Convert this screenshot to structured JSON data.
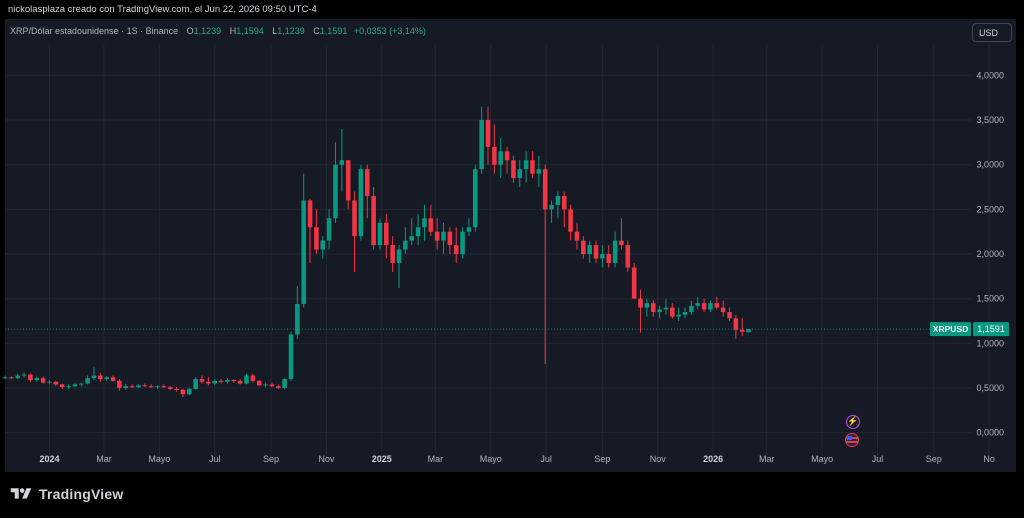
{
  "caption": "nickolasplaza creado con TradingView.com, el Jun 22, 2026 09:50 UTC-4",
  "symbol_line": {
    "title": "XRP/Dólar estadounidense · 1S · Binance",
    "o_label": "O",
    "o_value": "1,1239",
    "h_label": "H",
    "h_value": "1,1594",
    "l_label": "L",
    "l_value": "1,1239",
    "c_label": "C",
    "c_value": "1,1591",
    "change": "+0,0353 (+3,14%)"
  },
  "currency_button": "USD",
  "brand": "TradingView",
  "events": [
    {
      "name": "lightning-event-icon",
      "glyph": "⚡"
    },
    {
      "name": "us-flag-event-icon",
      "glyph": ""
    }
  ],
  "colors": {
    "up": "#089981",
    "down": "#f23645",
    "background": "#161a25",
    "grid": "#232632",
    "axis_text": "#b2b5be",
    "price_label": "#089981"
  },
  "chart_data": {
    "type": "candlestick",
    "timeframe": "weekly",
    "ylim": [
      -0.25,
      4.15
    ],
    "yticks": [
      0,
      0.5,
      1,
      1.5,
      2,
      2.5,
      3,
      3.5,
      4
    ],
    "ytick_labels": [
      "0,0000",
      "0,5000",
      "1,0000",
      "1,5000",
      "2,0000",
      "2,5000",
      "3,0000",
      "3,5000",
      "4,0000"
    ],
    "x_start": "2023-11-13",
    "x_end": "2026-10-12",
    "xticks": [
      {
        "date": "2024-01-01",
        "label": "2024",
        "bold": true
      },
      {
        "date": "2024-03-01",
        "label": "Mar"
      },
      {
        "date": "2024-05-01",
        "label": "Mayo"
      },
      {
        "date": "2024-07-01",
        "label": "Jul"
      },
      {
        "date": "2024-09-01",
        "label": "Sep"
      },
      {
        "date": "2024-11-01",
        "label": "Nov"
      },
      {
        "date": "2025-01-01",
        "label": "2025",
        "bold": true
      },
      {
        "date": "2025-03-01",
        "label": "Mar"
      },
      {
        "date": "2025-05-01",
        "label": "Mayo"
      },
      {
        "date": "2025-07-01",
        "label": "Jul"
      },
      {
        "date": "2025-09-01",
        "label": "Sep"
      },
      {
        "date": "2025-11-01",
        "label": "Nov"
      },
      {
        "date": "2026-01-01",
        "label": "2026",
        "bold": true
      },
      {
        "date": "2026-03-01",
        "label": "Mar"
      },
      {
        "date": "2026-05-01",
        "label": "Mayo"
      },
      {
        "date": "2026-07-01",
        "label": "Jul"
      },
      {
        "date": "2026-09-01",
        "label": "Sep"
      },
      {
        "date": "2026-11-01",
        "label": "No"
      }
    ],
    "last_price_label": {
      "symbol": "XRPUSD",
      "value": "1,1591",
      "price": 1.1591
    },
    "ohlc_weekly_from_2023-11-13": [
      [
        0.62,
        0.64,
        0.6,
        0.62
      ],
      [
        0.62,
        0.63,
        0.6,
        0.61
      ],
      [
        0.61,
        0.66,
        0.6,
        0.64
      ],
      [
        0.64,
        0.67,
        0.62,
        0.65
      ],
      [
        0.65,
        0.66,
        0.57,
        0.59
      ],
      [
        0.59,
        0.63,
        0.57,
        0.61
      ],
      [
        0.61,
        0.63,
        0.55,
        0.56
      ],
      [
        0.56,
        0.59,
        0.54,
        0.57
      ],
      [
        0.57,
        0.58,
        0.52,
        0.54
      ],
      [
        0.54,
        0.55,
        0.49,
        0.51
      ],
      [
        0.51,
        0.54,
        0.49,
        0.52
      ],
      [
        0.52,
        0.56,
        0.51,
        0.54
      ],
      [
        0.54,
        0.56,
        0.52,
        0.55
      ],
      [
        0.55,
        0.64,
        0.54,
        0.61
      ],
      [
        0.61,
        0.74,
        0.59,
        0.64
      ],
      [
        0.64,
        0.67,
        0.57,
        0.6
      ],
      [
        0.6,
        0.63,
        0.58,
        0.62
      ],
      [
        0.62,
        0.64,
        0.57,
        0.58
      ],
      [
        0.58,
        0.6,
        0.47,
        0.5
      ],
      [
        0.5,
        0.55,
        0.48,
        0.52
      ],
      [
        0.52,
        0.54,
        0.5,
        0.51
      ],
      [
        0.51,
        0.54,
        0.5,
        0.53
      ],
      [
        0.53,
        0.55,
        0.51,
        0.52
      ],
      [
        0.52,
        0.54,
        0.5,
        0.51
      ],
      [
        0.51,
        0.53,
        0.49,
        0.52
      ],
      [
        0.52,
        0.54,
        0.5,
        0.51
      ],
      [
        0.51,
        0.52,
        0.48,
        0.49
      ],
      [
        0.49,
        0.51,
        0.46,
        0.48
      ],
      [
        0.48,
        0.49,
        0.4,
        0.43
      ],
      [
        0.43,
        0.5,
        0.42,
        0.49
      ],
      [
        0.49,
        0.62,
        0.48,
        0.6
      ],
      [
        0.6,
        0.64,
        0.55,
        0.57
      ],
      [
        0.57,
        0.62,
        0.53,
        0.55
      ],
      [
        0.55,
        0.6,
        0.53,
        0.58
      ],
      [
        0.58,
        0.6,
        0.55,
        0.57
      ],
      [
        0.57,
        0.61,
        0.55,
        0.59
      ],
      [
        0.59,
        0.6,
        0.56,
        0.58
      ],
      [
        0.58,
        0.6,
        0.54,
        0.55
      ],
      [
        0.55,
        0.66,
        0.54,
        0.64
      ],
      [
        0.64,
        0.66,
        0.56,
        0.58
      ],
      [
        0.58,
        0.59,
        0.52,
        0.53
      ],
      [
        0.53,
        0.56,
        0.51,
        0.54
      ],
      [
        0.54,
        0.56,
        0.51,
        0.52
      ],
      [
        0.52,
        0.54,
        0.49,
        0.5
      ],
      [
        0.5,
        0.61,
        0.49,
        0.6
      ],
      [
        0.6,
        1.13,
        0.58,
        1.1
      ],
      [
        1.1,
        1.64,
        1.05,
        1.44
      ],
      [
        1.44,
        2.9,
        1.4,
        2.6
      ],
      [
        2.6,
        2.62,
        1.9,
        2.3
      ],
      [
        2.3,
        2.5,
        2.0,
        2.05
      ],
      [
        2.05,
        2.2,
        1.95,
        2.15
      ],
      [
        2.15,
        2.5,
        2.05,
        2.4
      ],
      [
        2.4,
        3.25,
        2.35,
        3.0
      ],
      [
        3.0,
        3.4,
        2.7,
        3.05
      ],
      [
        3.05,
        3.05,
        2.5,
        2.6
      ],
      [
        2.6,
        2.7,
        1.8,
        2.2
      ],
      [
        2.2,
        3.0,
        2.15,
        2.95
      ],
      [
        2.95,
        3.0,
        2.4,
        2.65
      ],
      [
        2.65,
        2.75,
        2.05,
        2.1
      ],
      [
        2.1,
        2.4,
        2.05,
        2.35
      ],
      [
        2.35,
        2.45,
        1.95,
        2.1
      ],
      [
        2.1,
        2.2,
        1.8,
        1.9
      ],
      [
        1.9,
        2.1,
        1.62,
        2.05
      ],
      [
        2.05,
        2.3,
        2.0,
        2.15
      ],
      [
        2.15,
        2.4,
        2.1,
        2.2
      ],
      [
        2.2,
        2.45,
        2.1,
        2.3
      ],
      [
        2.3,
        2.55,
        2.15,
        2.4
      ],
      [
        2.4,
        2.55,
        2.2,
        2.25
      ],
      [
        2.25,
        2.4,
        2.05,
        2.15
      ],
      [
        2.15,
        2.35,
        2.0,
        2.25
      ],
      [
        2.25,
        2.3,
        2.0,
        2.1
      ],
      [
        2.1,
        2.3,
        1.9,
        2.0
      ],
      [
        2.0,
        2.3,
        1.95,
        2.25
      ],
      [
        2.25,
        2.4,
        2.2,
        2.3
      ],
      [
        2.3,
        3.0,
        2.25,
        2.95
      ],
      [
        2.95,
        3.65,
        2.9,
        3.5
      ],
      [
        3.5,
        3.65,
        3.0,
        3.2
      ],
      [
        3.2,
        3.45,
        2.9,
        3.0
      ],
      [
        3.0,
        3.3,
        2.85,
        3.15
      ],
      [
        3.15,
        3.2,
        2.9,
        3.05
      ],
      [
        3.05,
        3.1,
        2.8,
        2.85
      ],
      [
        2.85,
        3.05,
        2.75,
        2.95
      ],
      [
        2.95,
        3.15,
        2.8,
        3.05
      ],
      [
        3.05,
        3.15,
        2.85,
        2.9
      ],
      [
        2.9,
        3.1,
        2.75,
        2.95
      ],
      [
        2.95,
        3.0,
        0.77,
        2.5
      ],
      [
        2.5,
        2.6,
        2.35,
        2.55
      ],
      [
        2.55,
        2.7,
        2.4,
        2.65
      ],
      [
        2.65,
        2.7,
        2.3,
        2.5
      ],
      [
        2.5,
        2.55,
        2.15,
        2.25
      ],
      [
        2.25,
        2.35,
        2.05,
        2.15
      ],
      [
        2.15,
        2.2,
        1.95,
        2.0
      ],
      [
        2.0,
        2.15,
        1.9,
        2.1
      ],
      [
        2.1,
        2.15,
        1.9,
        1.95
      ],
      [
        1.95,
        2.1,
        1.85,
        2.0
      ],
      [
        2.0,
        2.1,
        1.85,
        1.9
      ],
      [
        1.9,
        2.25,
        1.85,
        2.15
      ],
      [
        2.15,
        2.4,
        2.05,
        2.1
      ],
      [
        2.1,
        2.15,
        1.8,
        1.85
      ],
      [
        1.85,
        1.9,
        1.5,
        1.5
      ],
      [
        1.5,
        1.6,
        1.12,
        1.4
      ],
      [
        1.4,
        1.5,
        1.3,
        1.45
      ],
      [
        1.45,
        1.48,
        1.3,
        1.35
      ],
      [
        1.35,
        1.42,
        1.28,
        1.38
      ],
      [
        1.38,
        1.5,
        1.32,
        1.4
      ],
      [
        1.4,
        1.45,
        1.28,
        1.3
      ],
      [
        1.3,
        1.4,
        1.25,
        1.32
      ],
      [
        1.32,
        1.4,
        1.28,
        1.35
      ],
      [
        1.35,
        1.48,
        1.32,
        1.42
      ],
      [
        1.42,
        1.52,
        1.38,
        1.45
      ],
      [
        1.45,
        1.5,
        1.35,
        1.38
      ],
      [
        1.38,
        1.48,
        1.35,
        1.45
      ],
      [
        1.45,
        1.52,
        1.38,
        1.4
      ],
      [
        1.4,
        1.48,
        1.3,
        1.35
      ],
      [
        1.35,
        1.4,
        1.25,
        1.28
      ],
      [
        1.28,
        1.32,
        1.05,
        1.15
      ],
      [
        1.15,
        1.28,
        1.08,
        1.13
      ],
      [
        1.1239,
        1.1594,
        1.1239,
        1.1591
      ]
    ]
  }
}
